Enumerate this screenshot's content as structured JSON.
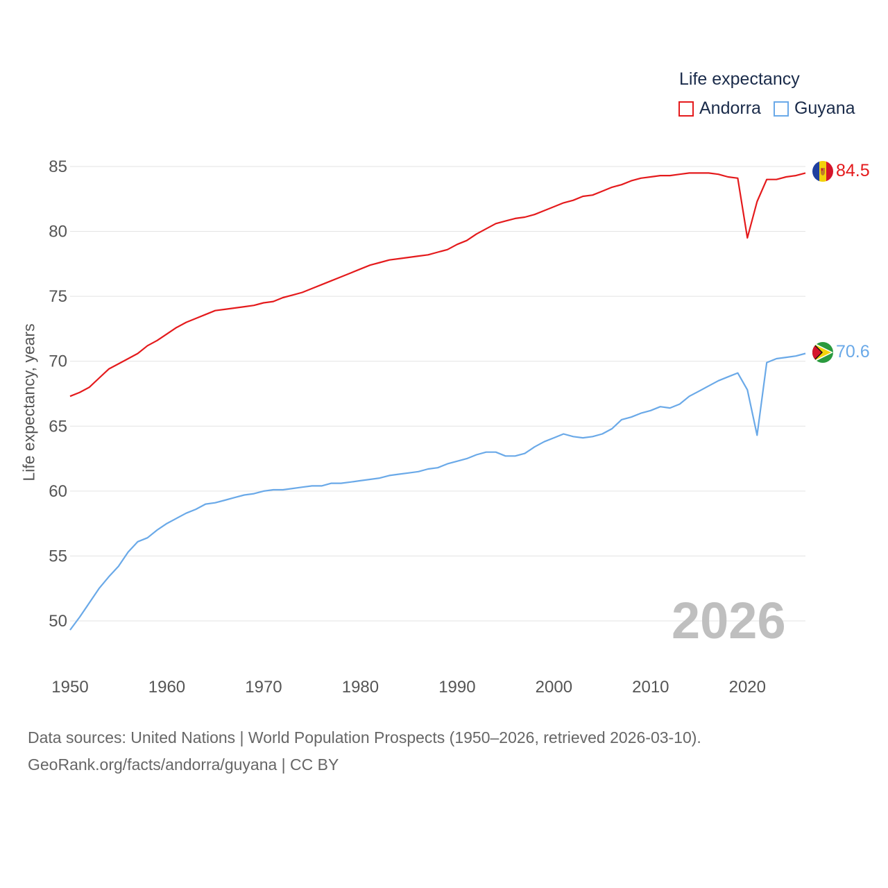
{
  "legend": {
    "title": "Life expectancy",
    "items": [
      {
        "label": "Andorra",
        "color": "#e41a1c"
      },
      {
        "label": "Guyana",
        "color": "#6aa9e8"
      }
    ]
  },
  "year_watermark": "2026",
  "end_labels": {
    "andorra": "84.5",
    "guyana": "70.6"
  },
  "footer": {
    "sources": "Data sources: United Nations | World Population Prospects (1950–2026, retrieved 2026-03-10).",
    "credit": "GeoRank.org/facts/andorra/guyana | CC BY"
  },
  "chart_data": {
    "type": "line",
    "title": "Life expectancy",
    "xlabel": "",
    "ylabel": "Life expectancy, years",
    "xlim": [
      1950,
      2026
    ],
    "ylim": [
      48.5,
      85.5
    ],
    "xticks": [
      1950,
      1960,
      1970,
      1980,
      1990,
      2000,
      2010,
      2020
    ],
    "yticks": [
      50,
      55,
      60,
      65,
      70,
      75,
      80,
      85
    ],
    "grid": "horizontal",
    "legend_position": "top-right",
    "series": [
      {
        "name": "Andorra",
        "color": "#e41a1c",
        "points": [
          [
            1950,
            67.3
          ],
          [
            1951,
            67.6
          ],
          [
            1952,
            68.0
          ],
          [
            1953,
            68.7
          ],
          [
            1954,
            69.4
          ],
          [
            1955,
            69.8
          ],
          [
            1956,
            70.2
          ],
          [
            1957,
            70.6
          ],
          [
            1958,
            71.2
          ],
          [
            1959,
            71.6
          ],
          [
            1960,
            72.1
          ],
          [
            1961,
            72.6
          ],
          [
            1962,
            73.0
          ],
          [
            1963,
            73.3
          ],
          [
            1964,
            73.6
          ],
          [
            1965,
            73.9
          ],
          [
            1966,
            74.0
          ],
          [
            1967,
            74.1
          ],
          [
            1968,
            74.2
          ],
          [
            1969,
            74.3
          ],
          [
            1970,
            74.5
          ],
          [
            1971,
            74.6
          ],
          [
            1972,
            74.9
          ],
          [
            1973,
            75.1
          ],
          [
            1974,
            75.3
          ],
          [
            1975,
            75.6
          ],
          [
            1976,
            75.9
          ],
          [
            1977,
            76.2
          ],
          [
            1978,
            76.5
          ],
          [
            1979,
            76.8
          ],
          [
            1980,
            77.1
          ],
          [
            1981,
            77.4
          ],
          [
            1982,
            77.6
          ],
          [
            1983,
            77.8
          ],
          [
            1984,
            77.9
          ],
          [
            1985,
            78.0
          ],
          [
            1986,
            78.1
          ],
          [
            1987,
            78.2
          ],
          [
            1988,
            78.4
          ],
          [
            1989,
            78.6
          ],
          [
            1990,
            79.0
          ],
          [
            1991,
            79.3
          ],
          [
            1992,
            79.8
          ],
          [
            1993,
            80.2
          ],
          [
            1994,
            80.6
          ],
          [
            1995,
            80.8
          ],
          [
            1996,
            81.0
          ],
          [
            1997,
            81.1
          ],
          [
            1998,
            81.3
          ],
          [
            1999,
            81.6
          ],
          [
            2000,
            81.9
          ],
          [
            2001,
            82.2
          ],
          [
            2002,
            82.4
          ],
          [
            2003,
            82.7
          ],
          [
            2004,
            82.8
          ],
          [
            2005,
            83.1
          ],
          [
            2006,
            83.4
          ],
          [
            2007,
            83.6
          ],
          [
            2008,
            83.9
          ],
          [
            2009,
            84.1
          ],
          [
            2010,
            84.2
          ],
          [
            2011,
            84.3
          ],
          [
            2012,
            84.3
          ],
          [
            2013,
            84.4
          ],
          [
            2014,
            84.5
          ],
          [
            2015,
            84.5
          ],
          [
            2016,
            84.5
          ],
          [
            2017,
            84.4
          ],
          [
            2018,
            84.2
          ],
          [
            2019,
            84.1
          ],
          [
            2020,
            79.5
          ],
          [
            2021,
            82.3
          ],
          [
            2022,
            84.0
          ],
          [
            2023,
            84.0
          ],
          [
            2024,
            84.2
          ],
          [
            2025,
            84.3
          ],
          [
            2026,
            84.5
          ]
        ]
      },
      {
        "name": "Guyana",
        "color": "#6aa9e8",
        "points": [
          [
            1950,
            49.3
          ],
          [
            1951,
            50.3
          ],
          [
            1952,
            51.4
          ],
          [
            1953,
            52.5
          ],
          [
            1954,
            53.4
          ],
          [
            1955,
            54.2
          ],
          [
            1956,
            55.3
          ],
          [
            1957,
            56.1
          ],
          [
            1958,
            56.4
          ],
          [
            1959,
            57.0
          ],
          [
            1960,
            57.5
          ],
          [
            1961,
            57.9
          ],
          [
            1962,
            58.3
          ],
          [
            1963,
            58.6
          ],
          [
            1964,
            59.0
          ],
          [
            1965,
            59.1
          ],
          [
            1966,
            59.3
          ],
          [
            1967,
            59.5
          ],
          [
            1968,
            59.7
          ],
          [
            1969,
            59.8
          ],
          [
            1970,
            60.0
          ],
          [
            1971,
            60.1
          ],
          [
            1972,
            60.1
          ],
          [
            1973,
            60.2
          ],
          [
            1974,
            60.3
          ],
          [
            1975,
            60.4
          ],
          [
            1976,
            60.4
          ],
          [
            1977,
            60.6
          ],
          [
            1978,
            60.6
          ],
          [
            1979,
            60.7
          ],
          [
            1980,
            60.8
          ],
          [
            1981,
            60.9
          ],
          [
            1982,
            61.0
          ],
          [
            1983,
            61.2
          ],
          [
            1984,
            61.3
          ],
          [
            1985,
            61.4
          ],
          [
            1986,
            61.5
          ],
          [
            1987,
            61.7
          ],
          [
            1988,
            61.8
          ],
          [
            1989,
            62.1
          ],
          [
            1990,
            62.3
          ],
          [
            1991,
            62.5
          ],
          [
            1992,
            62.8
          ],
          [
            1993,
            63.0
          ],
          [
            1994,
            63.0
          ],
          [
            1995,
            62.7
          ],
          [
            1996,
            62.7
          ],
          [
            1997,
            62.9
          ],
          [
            1998,
            63.4
          ],
          [
            1999,
            63.8
          ],
          [
            2000,
            64.1
          ],
          [
            2001,
            64.4
          ],
          [
            2002,
            64.2
          ],
          [
            2003,
            64.1
          ],
          [
            2004,
            64.2
          ],
          [
            2005,
            64.4
          ],
          [
            2006,
            64.8
          ],
          [
            2007,
            65.5
          ],
          [
            2008,
            65.7
          ],
          [
            2009,
            66.0
          ],
          [
            2010,
            66.2
          ],
          [
            2011,
            66.5
          ],
          [
            2012,
            66.4
          ],
          [
            2013,
            66.7
          ],
          [
            2014,
            67.3
          ],
          [
            2015,
            67.7
          ],
          [
            2016,
            68.1
          ],
          [
            2017,
            68.5
          ],
          [
            2018,
            68.8
          ],
          [
            2019,
            69.1
          ],
          [
            2020,
            67.8
          ],
          [
            2021,
            64.3
          ],
          [
            2022,
            69.9
          ],
          [
            2023,
            70.2
          ],
          [
            2024,
            70.3
          ],
          [
            2025,
            70.4
          ],
          [
            2026,
            70.6
          ]
        ]
      }
    ]
  }
}
